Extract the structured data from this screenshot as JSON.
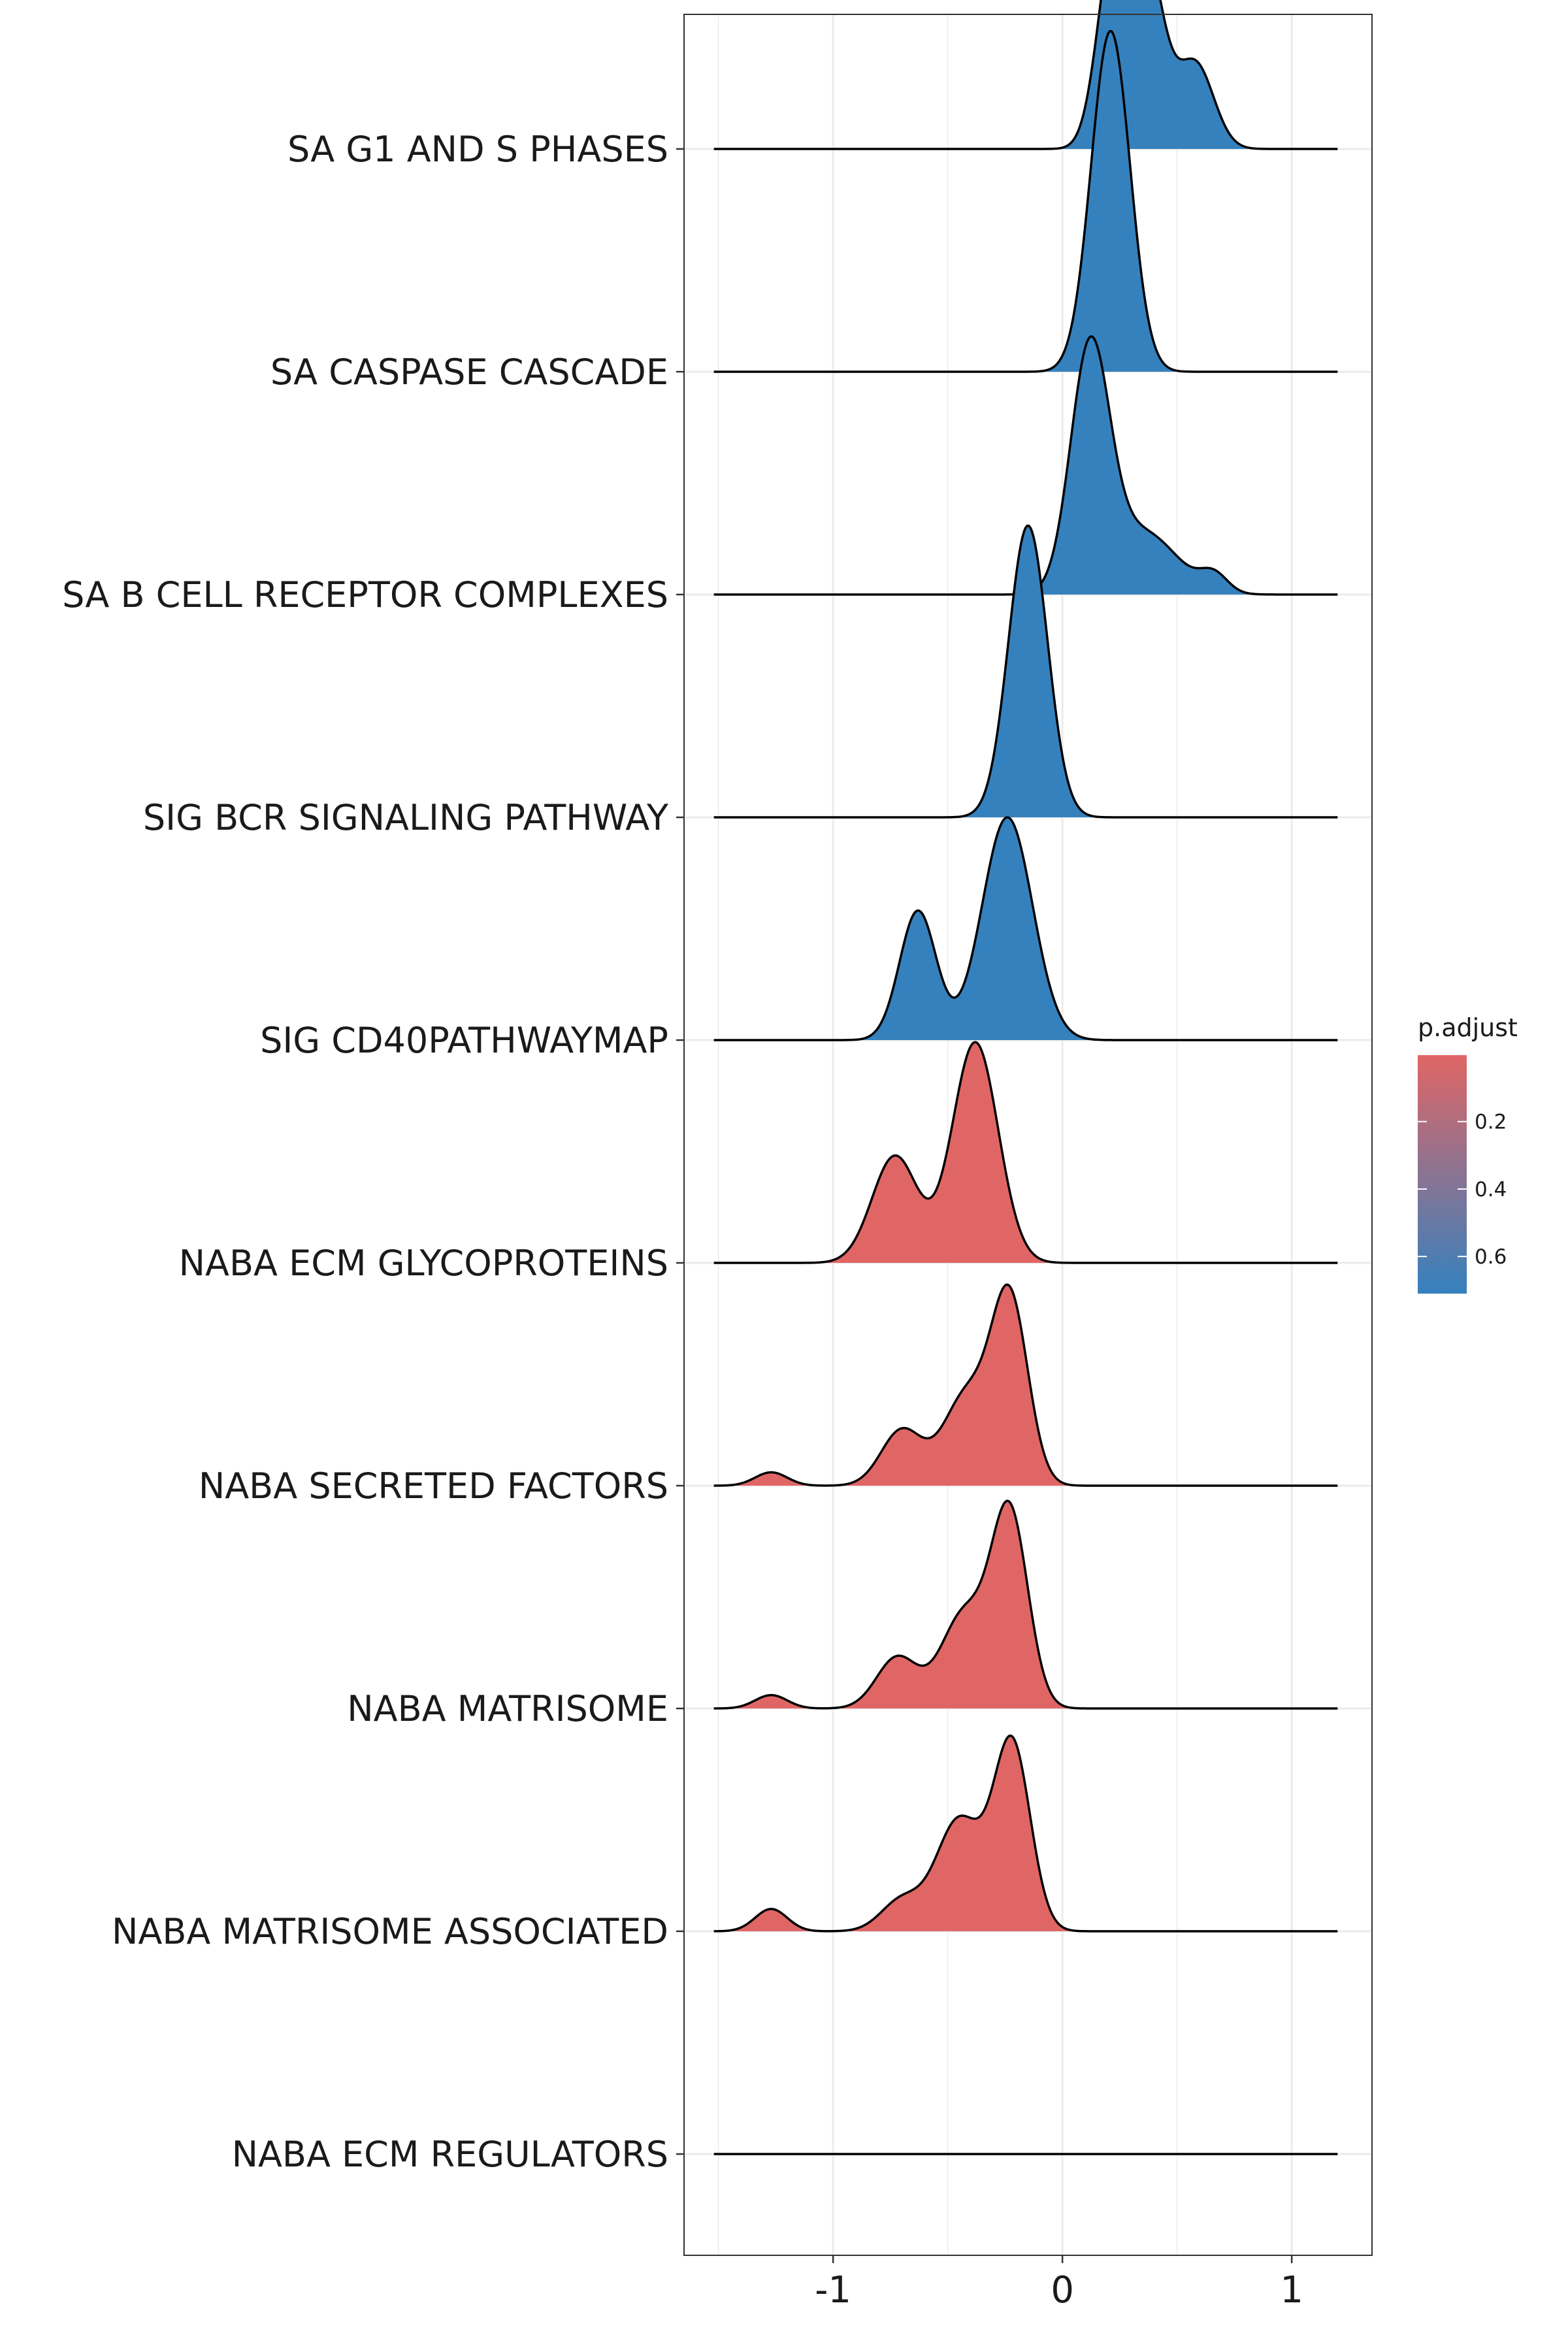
{
  "chart_data": {
    "type": "ridgeline",
    "title": "",
    "xlabel": "",
    "ylabel": "",
    "xlim": [
      -1.65,
      1.35
    ],
    "xticks": [
      {
        "value": -1,
        "label": "-1"
      },
      {
        "value": 0,
        "label": "0"
      },
      {
        "value": 1,
        "label": "1"
      }
    ],
    "grid": true,
    "legend": {
      "title": "p.adjust",
      "placement": "right",
      "range": [
        0.003,
        0.71
      ],
      "ticks": [
        {
          "value": 0.2,
          "label": "0.2"
        },
        {
          "value": 0.4,
          "label": "0.4"
        },
        {
          "value": 0.6,
          "label": "0.6"
        }
      ],
      "color_low": "#E06666",
      "color_high": "#3581BE"
    },
    "density_x_range": [
      -1.52,
      1.2
    ],
    "series": [
      {
        "name": "SA G1 AND S PHASES",
        "p_adjust": 0.71,
        "color": "#3581BE",
        "peaks": [
          {
            "mu": 0.22,
            "sigma": 0.07,
            "h": 0.82
          },
          {
            "mu": 0.36,
            "sigma": 0.08,
            "h": 0.85
          },
          {
            "mu": 0.58,
            "sigma": 0.08,
            "h": 0.38
          }
        ]
      },
      {
        "name": "SA CASPASE CASCADE",
        "p_adjust": 0.71,
        "color": "#3581BE",
        "peaks": [
          {
            "mu": 0.21,
            "sigma": 0.085,
            "h": 1.53
          }
        ]
      },
      {
        "name": "SA B CELL RECEPTOR COMPLEXES",
        "p_adjust": 0.71,
        "color": "#3581BE",
        "peaks": [
          {
            "mu": 0.12,
            "sigma": 0.085,
            "h": 1.07
          },
          {
            "mu": 0.35,
            "sigma": 0.15,
            "h": 0.28
          },
          {
            "mu": 0.66,
            "sigma": 0.06,
            "h": 0.08
          }
        ]
      },
      {
        "name": "SIG BCR SIGNALING PATHWAY",
        "p_adjust": 0.71,
        "color": "#3581BE",
        "peaks": [
          {
            "mu": -0.15,
            "sigma": 0.085,
            "h": 1.31
          }
        ]
      },
      {
        "name": "SIG CD40PATHWAYMAP",
        "p_adjust": 0.71,
        "color": "#3581BE",
        "peaks": [
          {
            "mu": -0.63,
            "sigma": 0.08,
            "h": 0.58
          },
          {
            "mu": -0.24,
            "sigma": 0.11,
            "h": 1.0
          }
        ]
      },
      {
        "name": "NABA ECM GLYCOPROTEINS",
        "p_adjust": 0.003,
        "color": "#E06666",
        "peaks": [
          {
            "mu": -0.73,
            "sigma": 0.1,
            "h": 0.48
          },
          {
            "mu": -0.38,
            "sigma": 0.1,
            "h": 0.99
          }
        ]
      },
      {
        "name": "NABA SECRETED FACTORS",
        "p_adjust": 0.003,
        "color": "#E06666",
        "peaks": [
          {
            "mu": -1.27,
            "sigma": 0.07,
            "h": 0.06
          },
          {
            "mu": -0.7,
            "sigma": 0.09,
            "h": 0.25
          },
          {
            "mu": -0.42,
            "sigma": 0.1,
            "h": 0.4
          },
          {
            "mu": -0.23,
            "sigma": 0.08,
            "h": 0.83
          }
        ]
      },
      {
        "name": "NABA MATRISOME",
        "p_adjust": 0.003,
        "color": "#E06666",
        "peaks": [
          {
            "mu": -1.27,
            "sigma": 0.07,
            "h": 0.06
          },
          {
            "mu": -0.72,
            "sigma": 0.09,
            "h": 0.23
          },
          {
            "mu": -0.43,
            "sigma": 0.1,
            "h": 0.42
          },
          {
            "mu": -0.23,
            "sigma": 0.08,
            "h": 0.87
          }
        ]
      },
      {
        "name": "NABA MATRISOME ASSOCIATED",
        "p_adjust": 0.003,
        "color": "#E06666",
        "peaks": [
          {
            "mu": -1.27,
            "sigma": 0.07,
            "h": 0.1
          },
          {
            "mu": -0.7,
            "sigma": 0.09,
            "h": 0.14
          },
          {
            "mu": -0.45,
            "sigma": 0.1,
            "h": 0.5
          },
          {
            "mu": -0.22,
            "sigma": 0.08,
            "h": 0.84
          }
        ]
      },
      {
        "name": "NABA ECM REGULATORS",
        "p_adjust": 0.003,
        "color": "#E06666",
        "peaks": []
      }
    ]
  }
}
